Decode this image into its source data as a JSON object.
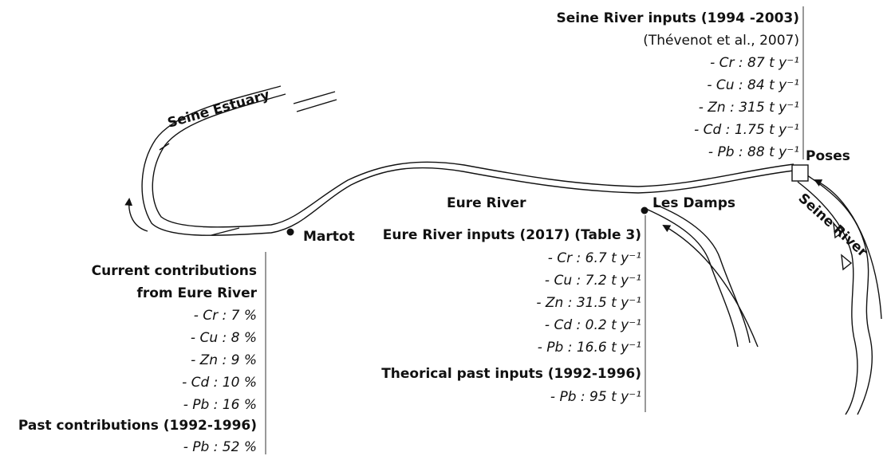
{
  "places": {
    "estuary": "Seine Estuary",
    "poses": "Poses",
    "seine_river": "Seine River",
    "eure_river": "Eure River",
    "les_damps": "Les Damps",
    "martot": "Martot"
  },
  "seine_inputs": {
    "title": "Seine River inputs (1994 -2003)",
    "source": "(Thévenot et al., 2007)",
    "items": [
      "- Cr : 87 t y⁻¹",
      "- Cu : 84 t y⁻¹",
      "- Zn : 315 t y⁻¹",
      "- Cd : 1.75 t y⁻¹",
      "- Pb : 88 t y⁻¹"
    ]
  },
  "eure_inputs": {
    "title": "Eure River inputs (2017) (Table 3)",
    "items": [
      "- Cr : 6.7 t y⁻¹",
      "- Cu : 7.2 t y⁻¹",
      "- Zn : 31.5 t y⁻¹",
      "- Cd : 0.2  t y⁻¹",
      "- Pb : 16.6 t y⁻¹"
    ],
    "past_title": "Theorical past inputs (1992-1996)",
    "past_items": [
      "- Pb : 95 t y⁻¹"
    ]
  },
  "contributions": {
    "title_lines": [
      "Current contributions",
      "from Eure River"
    ],
    "items": [
      "- Cr : 7 %",
      "- Cu : 8 %",
      "- Zn : 9 %",
      "- Cd : 10 %",
      "- Pb : 16 %"
    ],
    "past_title": "Past contributions (1992-1996)",
    "past_items": [
      "- Pb : 52 %"
    ]
  }
}
